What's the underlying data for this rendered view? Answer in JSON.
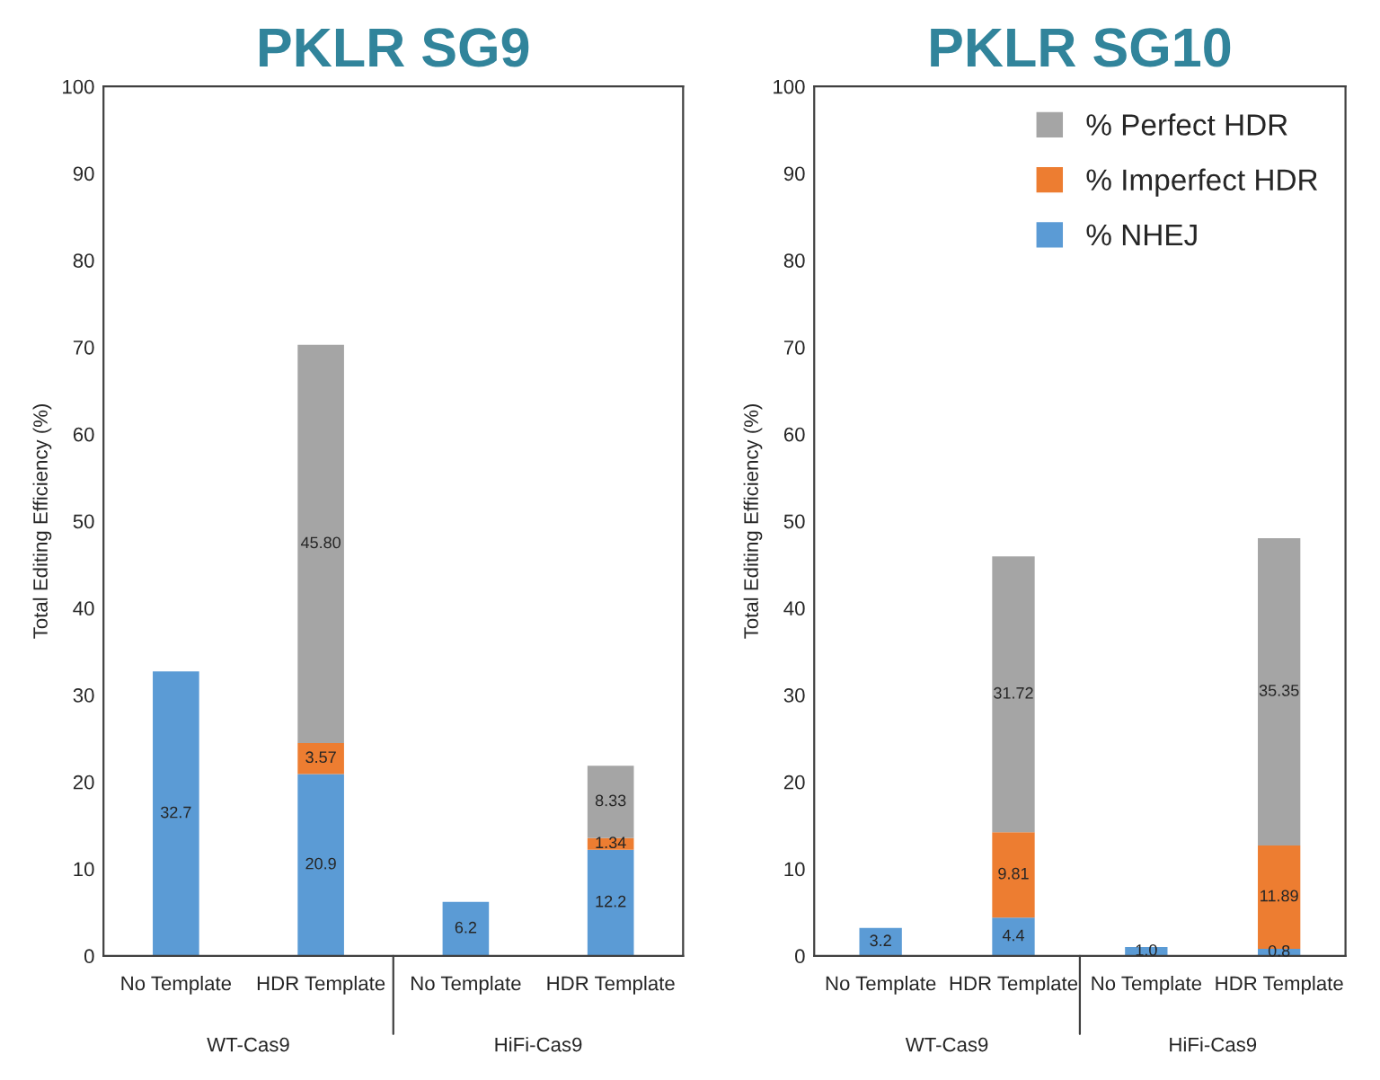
{
  "chart_data": [
    {
      "type": "bar",
      "title": "PKLR SG9",
      "ylabel": "Total Editing Efficiency (%)",
      "stacked": true,
      "categories": [
        "No Template",
        "HDR Template",
        "No Template",
        "HDR Template"
      ],
      "annotations": [
        "WT-Cas9",
        "HiFi-Cas9"
      ],
      "ylim": [
        0,
        100
      ],
      "yticks": [
        0,
        10,
        20,
        30,
        40,
        50,
        60,
        70,
        80,
        90,
        100
      ],
      "grid": false,
      "legend": false,
      "series": [
        {
          "color": "#5b9bd5",
          "values": [
            32.7,
            20.9,
            6.2,
            12.2
          ],
          "value_labels": [
            "32.7",
            "20.9",
            "6.2",
            "12.2"
          ]
        },
        {
          "color": "#ed7d31",
          "values": [
            null,
            3.57,
            null,
            1.34
          ],
          "value_labels": [
            null,
            "3.57",
            null,
            "1.34"
          ]
        },
        {
          "color": "#a5a5a5",
          "values": [
            null,
            45.8,
            null,
            8.33
          ],
          "value_labels": [
            null,
            "45.80",
            null,
            "8.33"
          ]
        }
      ]
    },
    {
      "type": "bar",
      "title": "PKLR SG10",
      "ylabel": "Total Editing Efficiency (%)",
      "stacked": true,
      "categories": [
        "No Template",
        "HDR Template",
        "No Template",
        "HDR Template"
      ],
      "annotations": [
        "WT-Cas9",
        "HiFi-Cas9"
      ],
      "ylim": [
        0,
        100
      ],
      "yticks": [
        0,
        10,
        20,
        30,
        40,
        50,
        60,
        70,
        80,
        90,
        100
      ],
      "grid": false,
      "legend": "top right",
      "series": [
        {
          "name": "% NHEJ",
          "color": "#5b9bd5",
          "values": [
            3.2,
            4.4,
            1.0,
            0.8
          ],
          "value_labels": [
            "3.2",
            "4.4",
            "1.0",
            "0.8"
          ]
        },
        {
          "name": "% Imperfect HDR",
          "color": "#ed7d31",
          "values": [
            null,
            9.81,
            null,
            11.89
          ],
          "value_labels": [
            null,
            "9.81",
            null,
            "11.89"
          ]
        },
        {
          "name": "% Perfect HDR",
          "color": "#a5a5a5",
          "values": [
            null,
            31.72,
            null,
            35.35
          ],
          "value_labels": [
            null,
            "31.72",
            null,
            "35.35"
          ]
        }
      ]
    }
  ]
}
